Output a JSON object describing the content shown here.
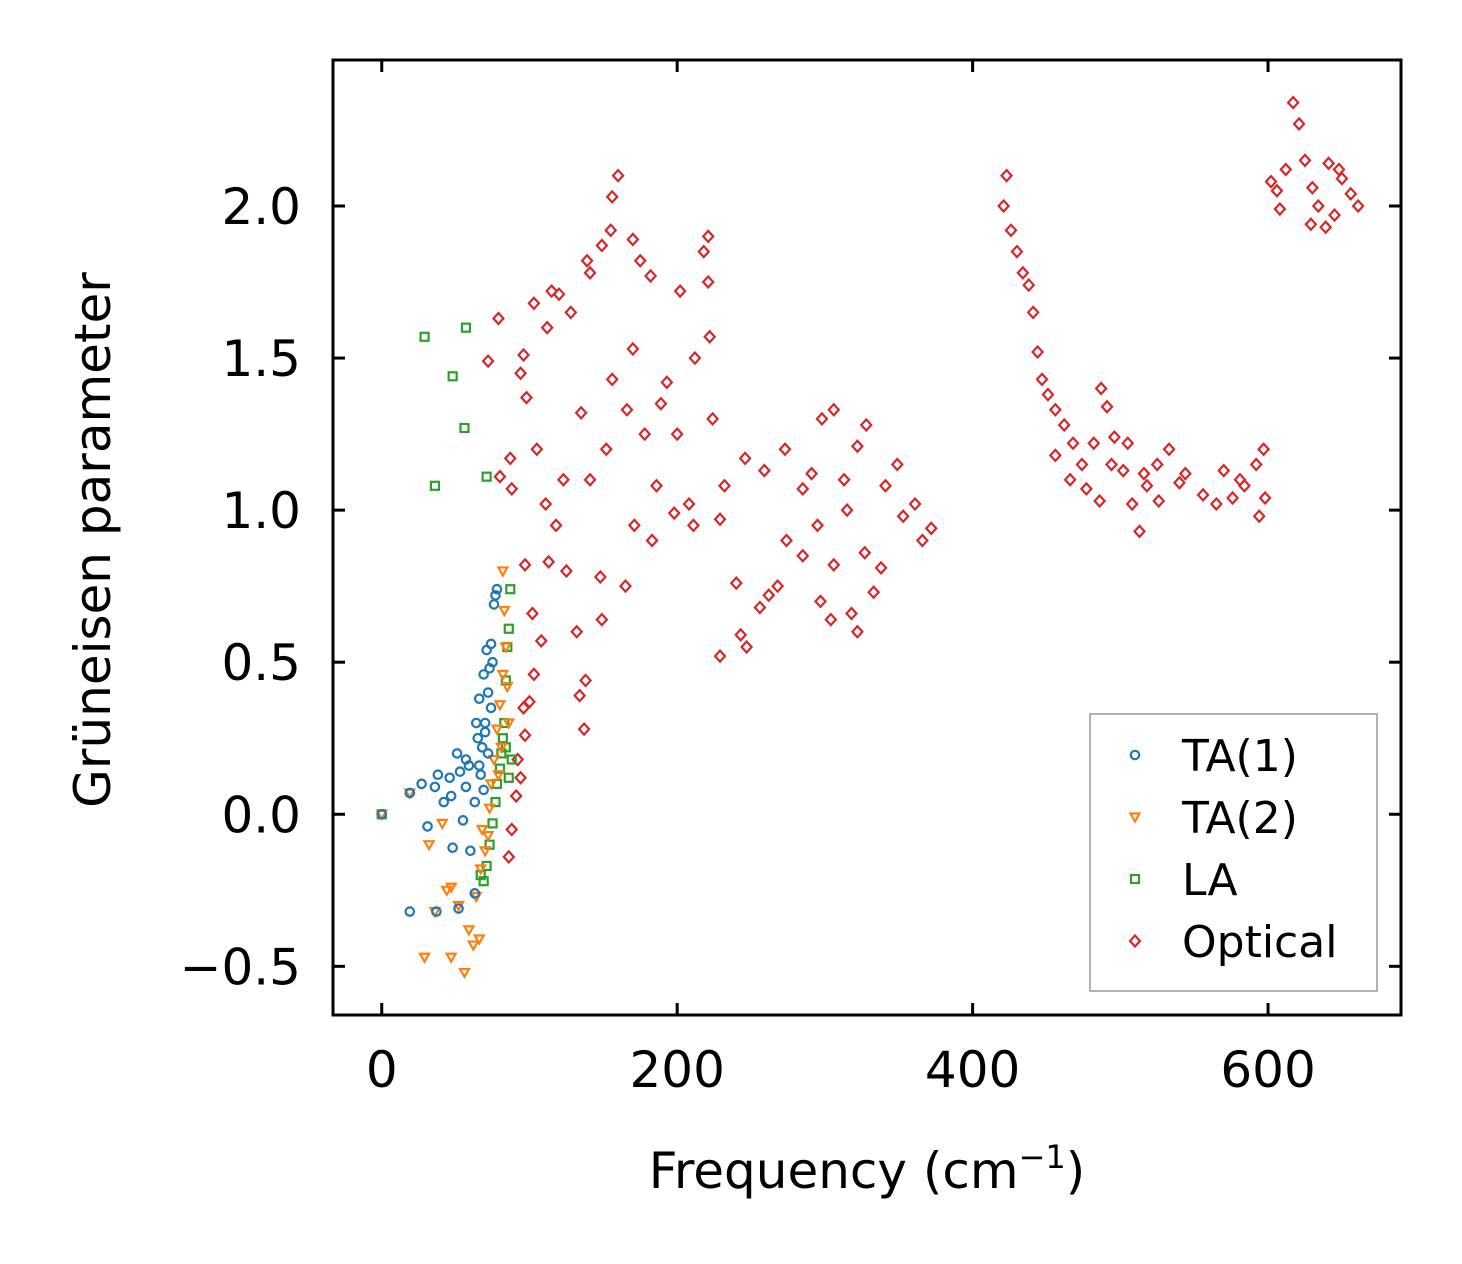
{
  "chart_data": {
    "type": "scatter",
    "title": "",
    "xlabel": "Frequency (cm",
    "xlabel_sup": "−1",
    "xlabel_suffix": ")",
    "ylabel": "Grüneisen parameter",
    "xlim": [
      -33,
      690
    ],
    "ylim": [
      -0.66,
      2.48
    ],
    "x_ticks": [
      0,
      200,
      400,
      600
    ],
    "x_tick_labels": [
      "0",
      "200",
      "400",
      "600"
    ],
    "y_ticks": [
      -0.5,
      0.0,
      0.5,
      1.0,
      1.5,
      2.0
    ],
    "y_tick_labels": [
      "−0.5",
      "0.0",
      "0.5",
      "1.0",
      "1.5",
      "2.0"
    ],
    "grid": false,
    "legend_position": "lower-right",
    "series": [
      {
        "name": "TA(1)",
        "marker": "circle",
        "color": "#1f77b4",
        "points": [
          [
            0,
            0
          ],
          [
            19,
            0.07
          ],
          [
            27,
            0.1
          ],
          [
            31,
            -0.04
          ],
          [
            36,
            0.09
          ],
          [
            38,
            0.13
          ],
          [
            42,
            0.04
          ],
          [
            47,
            0.06
          ],
          [
            48,
            -0.11
          ],
          [
            51,
            0.2
          ],
          [
            53,
            0.14
          ],
          [
            55,
            -0.02
          ],
          [
            57,
            0.18
          ],
          [
            59,
            0.16
          ],
          [
            60,
            -0.12
          ],
          [
            63,
            0.04
          ],
          [
            64,
            0.3
          ],
          [
            65,
            0.25
          ],
          [
            66,
            0.38
          ],
          [
            67,
            0.13
          ],
          [
            68,
            0.22
          ],
          [
            69,
            0.46
          ],
          [
            70,
            0.3
          ],
          [
            71,
            0.54
          ],
          [
            72,
            0.4
          ],
          [
            73,
            0.48
          ],
          [
            74,
            0.56
          ],
          [
            75,
            0.5
          ],
          [
            76,
            0.69
          ],
          [
            77,
            0.72
          ],
          [
            78,
            0.74
          ],
          [
            74,
            0.35
          ],
          [
            72,
            0.2
          ],
          [
            66,
            0.16
          ],
          [
            70,
            0.27
          ],
          [
            63,
            -0.26
          ],
          [
            52,
            -0.31
          ],
          [
            37,
            -0.32
          ],
          [
            19,
            -0.32
          ],
          [
            46,
            0.12
          ],
          [
            57,
            0.09
          ],
          [
            69,
            0.08
          ]
        ]
      },
      {
        "name": "TA(2)",
        "marker": "triangle-down",
        "color": "#ff7f0e",
        "points": [
          [
            0,
            0
          ],
          [
            19,
            0.07
          ],
          [
            32,
            -0.1
          ],
          [
            41,
            -0.03
          ],
          [
            44,
            -0.25
          ],
          [
            47,
            -0.24
          ],
          [
            52,
            -0.3
          ],
          [
            56,
            -0.52
          ],
          [
            59,
            -0.38
          ],
          [
            62,
            -0.43
          ],
          [
            64,
            -0.27
          ],
          [
            66,
            -0.41
          ],
          [
            68,
            -0.05
          ],
          [
            70,
            -0.12
          ],
          [
            72,
            -0.07
          ],
          [
            74,
            0.1
          ],
          [
            76,
            0.18
          ],
          [
            78,
            0.28
          ],
          [
            80,
            0.36
          ],
          [
            82,
            0.46
          ],
          [
            84,
            0.55
          ],
          [
            83,
            0.67
          ],
          [
            82,
            0.8
          ],
          [
            85,
            0.42
          ],
          [
            86,
            0.3
          ],
          [
            29,
            -0.47
          ],
          [
            47,
            -0.47
          ],
          [
            36,
            -0.32
          ],
          [
            67,
            -0.18
          ],
          [
            73,
            0.02
          ],
          [
            79,
            0.13
          ],
          [
            81,
            0.22
          ]
        ]
      },
      {
        "name": "LA",
        "marker": "square",
        "color": "#2ca02c",
        "points": [
          [
            0,
            0
          ],
          [
            29,
            1.57
          ],
          [
            36,
            1.08
          ],
          [
            48,
            1.44
          ],
          [
            56,
            1.27
          ],
          [
            57,
            1.6
          ],
          [
            71,
            1.11
          ],
          [
            67,
            -0.2
          ],
          [
            71,
            -0.17
          ],
          [
            73,
            -0.1
          ],
          [
            75,
            -0.03
          ],
          [
            77,
            0.04
          ],
          [
            78,
            0.1
          ],
          [
            80,
            0.15
          ],
          [
            81,
            0.2
          ],
          [
            82,
            0.25
          ],
          [
            83,
            0.3
          ],
          [
            84,
            0.44
          ],
          [
            85,
            0.55
          ],
          [
            86,
            0.61
          ],
          [
            87,
            0.74
          ],
          [
            86,
            0.12
          ],
          [
            88,
            0.18
          ],
          [
            84,
            0.22
          ],
          [
            69,
            -0.22
          ]
        ]
      },
      {
        "name": "Optical",
        "marker": "diamond",
        "color": "#d62728",
        "points": [
          [
            72,
            1.49
          ],
          [
            79,
            1.63
          ],
          [
            80,
            1.11
          ],
          [
            87,
            1.17
          ],
          [
            88,
            1.07
          ],
          [
            94,
            1.45
          ],
          [
            96,
            1.51
          ],
          [
            98,
            1.37
          ],
          [
            103,
            1.68
          ],
          [
            115,
            1.72
          ],
          [
            112,
            1.6
          ],
          [
            120,
            1.71
          ],
          [
            128,
            1.65
          ],
          [
            139,
            1.82
          ],
          [
            141,
            1.78
          ],
          [
            149,
            1.87
          ],
          [
            155,
            1.92
          ],
          [
            156,
            2.03
          ],
          [
            160,
            2.1
          ],
          [
            170,
            1.89
          ],
          [
            175,
            1.82
          ],
          [
            182,
            1.77
          ],
          [
            202,
            1.72
          ],
          [
            218,
            1.85
          ],
          [
            221,
            1.9
          ],
          [
            156,
            1.43
          ],
          [
            170,
            1.53
          ],
          [
            189,
            1.35
          ],
          [
            221,
            1.75
          ],
          [
            222,
            1.57
          ],
          [
            212,
            1.5
          ],
          [
            200,
            1.25
          ],
          [
            224,
            1.3
          ],
          [
            246,
            1.17
          ],
          [
            273,
            1.2
          ],
          [
            208,
            1.02
          ],
          [
            232,
            1.08
          ],
          [
            259,
            1.13
          ],
          [
            285,
            1.07
          ],
          [
            298,
            1.3
          ],
          [
            306,
            1.33
          ],
          [
            313,
            1.1
          ],
          [
            328,
            1.28
          ],
          [
            349,
            1.15
          ],
          [
            361,
            1.02
          ],
          [
            372,
            0.94
          ],
          [
            306,
            0.82
          ],
          [
            322,
            0.6
          ],
          [
            327,
            0.86
          ],
          [
            333,
            0.73
          ],
          [
            229,
            0.52
          ],
          [
            243,
            0.59
          ],
          [
            256,
            0.68
          ],
          [
            268,
            0.75
          ],
          [
            285,
            0.85
          ],
          [
            297,
            0.7
          ],
          [
            304,
            0.64
          ],
          [
            318,
            0.66
          ],
          [
            338,
            0.81
          ],
          [
            183,
            0.9
          ],
          [
            171,
            0.95
          ],
          [
            165,
            0.75
          ],
          [
            148,
            0.78
          ],
          [
            149,
            0.64
          ],
          [
            138,
            0.44
          ],
          [
            134,
            0.39
          ],
          [
            137,
            0.28
          ],
          [
            132,
            0.6
          ],
          [
            125,
            0.8
          ],
          [
            113,
            0.83
          ],
          [
            108,
            0.57
          ],
          [
            103,
            0.46
          ],
          [
            100,
            0.37
          ],
          [
            97,
            0.26
          ],
          [
            94,
            0.12
          ],
          [
            91,
            0.06
          ],
          [
            88,
            -0.05
          ],
          [
            86,
            -0.14
          ],
          [
            92,
            0.18
          ],
          [
            96,
            0.35
          ],
          [
            102,
            0.66
          ],
          [
            97,
            0.82
          ],
          [
            111,
            1.02
          ],
          [
            118,
            0.95
          ],
          [
            105,
            1.2
          ],
          [
            123,
            1.1
          ],
          [
            135,
            1.32
          ],
          [
            141,
            1.1
          ],
          [
            152,
            1.2
          ],
          [
            166,
            1.33
          ],
          [
            178,
            1.25
          ],
          [
            193,
            1.42
          ],
          [
            186,
            1.08
          ],
          [
            198,
            0.99
          ],
          [
            211,
            0.95
          ],
          [
            229,
            0.97
          ],
          [
            240,
            0.76
          ],
          [
            247,
            0.55
          ],
          [
            262,
            0.72
          ],
          [
            274,
            0.9
          ],
          [
            291,
            1.12
          ],
          [
            295,
            0.95
          ],
          [
            315,
            1.0
          ],
          [
            322,
            1.21
          ],
          [
            341,
            1.08
          ],
          [
            353,
            0.98
          ],
          [
            366,
            0.9
          ],
          [
            423,
            2.1
          ],
          [
            421,
            2.0
          ],
          [
            426,
            1.92
          ],
          [
            430,
            1.85
          ],
          [
            434,
            1.78
          ],
          [
            438,
            1.74
          ],
          [
            441,
            1.65
          ],
          [
            444,
            1.52
          ],
          [
            447,
            1.43
          ],
          [
            451,
            1.38
          ],
          [
            456,
            1.33
          ],
          [
            462,
            1.28
          ],
          [
            468,
            1.22
          ],
          [
            474,
            1.15
          ],
          [
            482,
            1.22
          ],
          [
            487,
            1.4
          ],
          [
            491,
            1.34
          ],
          [
            496,
            1.24
          ],
          [
            502,
            1.13
          ],
          [
            508,
            1.02
          ],
          [
            513,
            0.93
          ],
          [
            518,
            1.08
          ],
          [
            525,
            1.15
          ],
          [
            533,
            1.2
          ],
          [
            544,
            1.12
          ],
          [
            556,
            1.05
          ],
          [
            565,
            1.02
          ],
          [
            576,
            1.04
          ],
          [
            584,
            1.08
          ],
          [
            592,
            1.15
          ],
          [
            597,
            1.2
          ],
          [
            598,
            1.04
          ],
          [
            594,
            0.98
          ],
          [
            456,
            1.18
          ],
          [
            466,
            1.1
          ],
          [
            477,
            1.07
          ],
          [
            486,
            1.03
          ],
          [
            494,
            1.15
          ],
          [
            505,
            1.22
          ],
          [
            516,
            1.12
          ],
          [
            526,
            1.03
          ],
          [
            540,
            1.09
          ],
          [
            570,
            1.13
          ],
          [
            581,
            1.1
          ],
          [
            602,
            2.08
          ],
          [
            606,
            2.05
          ],
          [
            612,
            2.12
          ],
          [
            617,
            2.34
          ],
          [
            621,
            2.27
          ],
          [
            625,
            2.15
          ],
          [
            630,
            2.06
          ],
          [
            634,
            2.0
          ],
          [
            639,
            1.93
          ],
          [
            645,
            1.97
          ],
          [
            650,
            2.09
          ],
          [
            656,
            2.04
          ],
          [
            661,
            2.0
          ],
          [
            608,
            1.99
          ],
          [
            629,
            1.94
          ],
          [
            641,
            2.14
          ],
          [
            648,
            2.12
          ]
        ]
      }
    ]
  }
}
